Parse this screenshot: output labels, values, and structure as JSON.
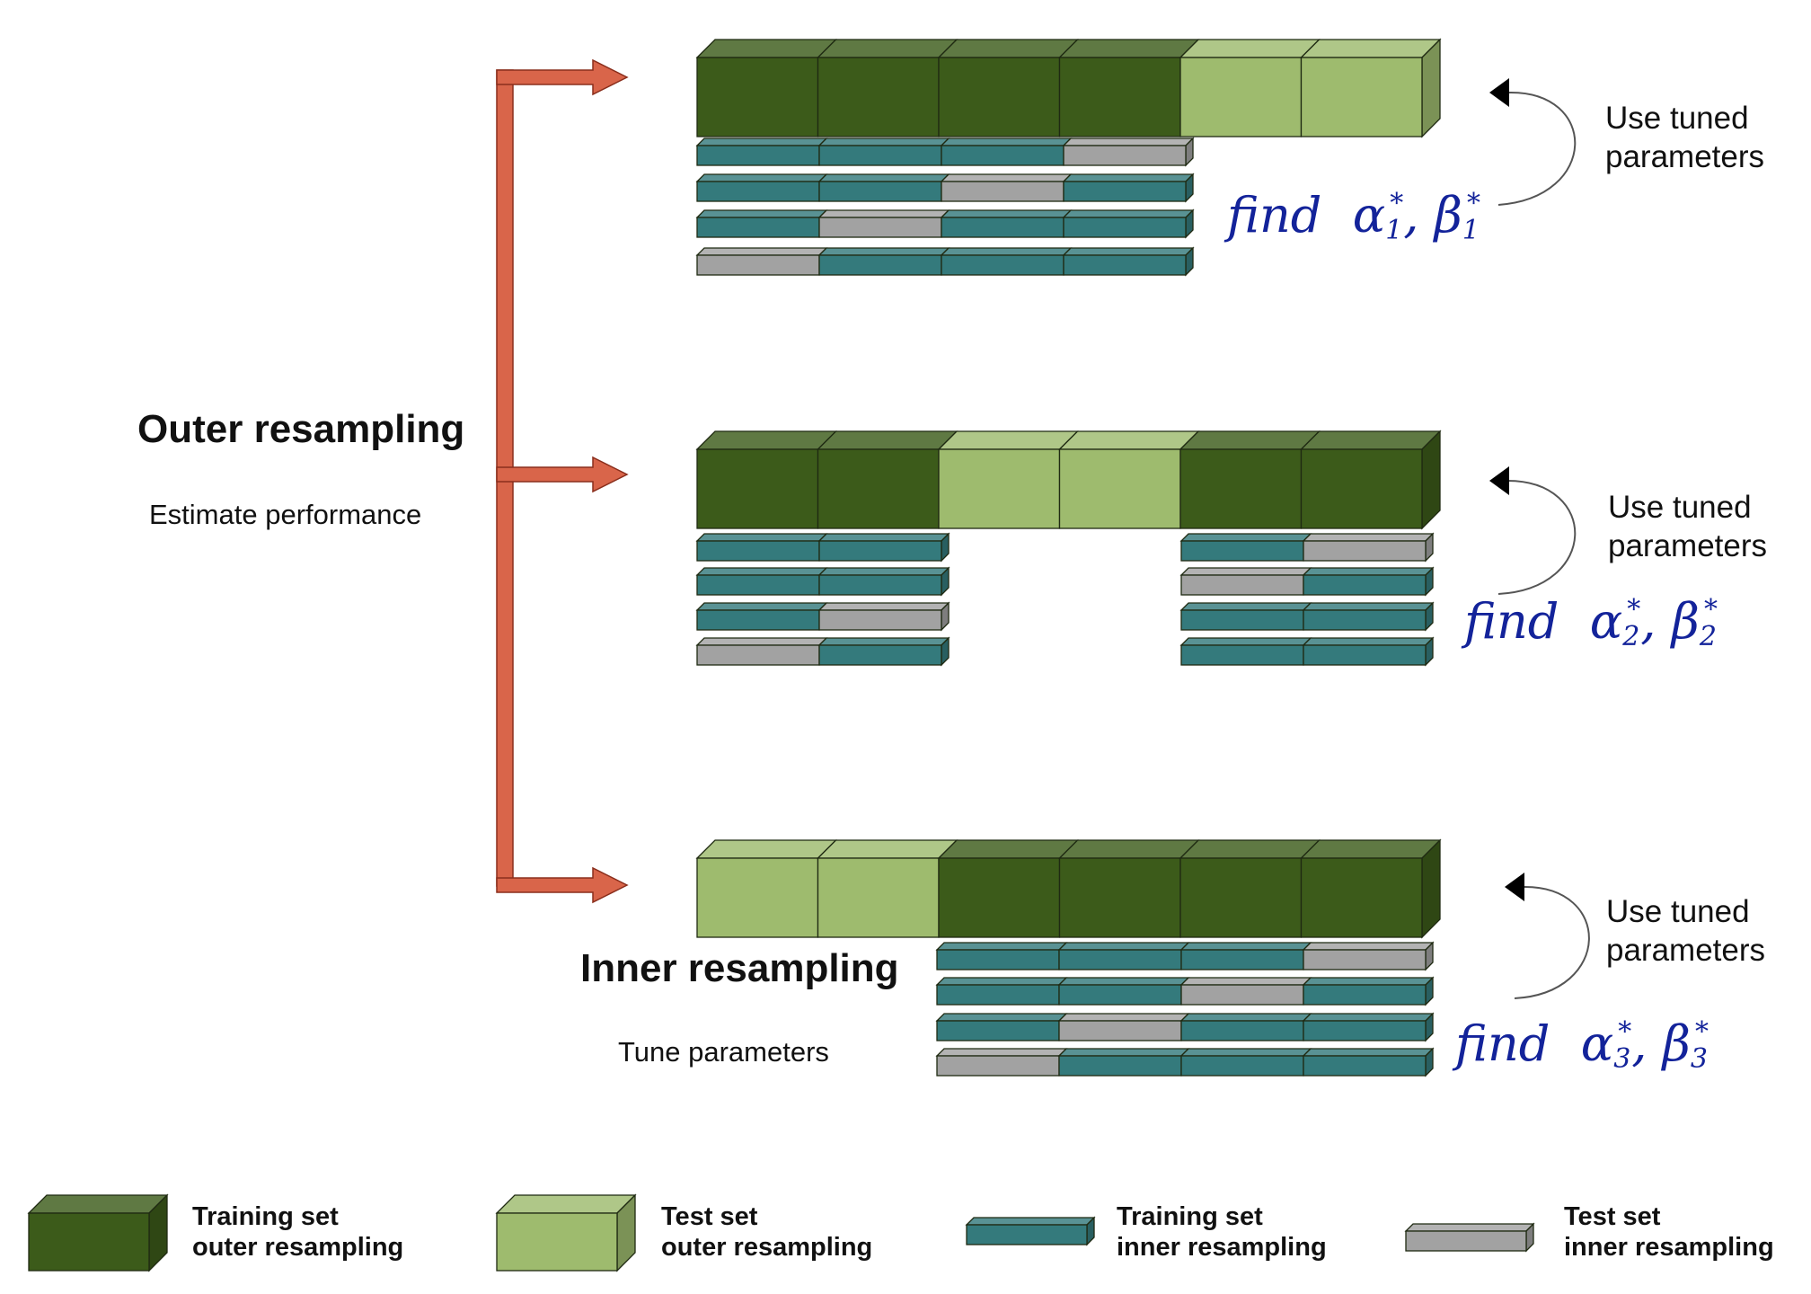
{
  "colors": {
    "train_outer": "#3c5b1a",
    "test_outer": "#9ebb6e",
    "train_inner": "#347a7c",
    "test_inner": "#a2a2a2",
    "arrow": "#d9654a",
    "handwriting": "#13239a"
  },
  "outer_resampling": {
    "title": "Outer resampling",
    "subtitle": "Estimate performance"
  },
  "inner_resampling": {
    "title": "Inner resampling",
    "subtitle": "Tune parameters"
  },
  "folds": [
    {
      "outer_pattern": [
        "train",
        "train",
        "train",
        "train",
        "test",
        "test"
      ],
      "inner_groups": [
        [
          [
            "train",
            "train",
            "train",
            "test"
          ],
          [
            "train",
            "train",
            "test",
            "train"
          ],
          [
            "train",
            "test",
            "train",
            "train"
          ],
          [
            "test",
            "train",
            "train",
            "train"
          ]
        ]
      ],
      "side_label": [
        "Use tuned",
        "parameters"
      ],
      "handwritten": {
        "prefix": "find",
        "alpha": "α",
        "beta": "β",
        "index": "1",
        "star": "*"
      }
    },
    {
      "outer_pattern": [
        "train",
        "train",
        "test",
        "test",
        "train",
        "train"
      ],
      "inner_groups": [
        [
          [
            "train",
            "train"
          ],
          [
            "train",
            "train"
          ],
          [
            "train",
            "test"
          ],
          [
            "test",
            "train"
          ]
        ],
        [
          [
            "train",
            "test"
          ],
          [
            "test",
            "train"
          ],
          [
            "train",
            "train"
          ],
          [
            "train",
            "train"
          ]
        ]
      ],
      "side_label": [
        "Use tuned",
        "parameters"
      ],
      "handwritten": {
        "prefix": "find",
        "alpha": "α",
        "beta": "β",
        "index": "2",
        "star": "*"
      }
    },
    {
      "outer_pattern": [
        "test",
        "test",
        "train",
        "train",
        "train",
        "train"
      ],
      "inner_groups": [
        [
          [
            "train",
            "train",
            "train",
            "test"
          ],
          [
            "train",
            "train",
            "test",
            "train"
          ],
          [
            "train",
            "test",
            "train",
            "train"
          ],
          [
            "test",
            "train",
            "train",
            "train"
          ]
        ]
      ],
      "side_label": [
        "Use tuned",
        "parameters"
      ],
      "handwritten": {
        "prefix": "find",
        "alpha": "α",
        "beta": "β",
        "index": "3",
        "star": "*"
      }
    }
  ],
  "legend": [
    {
      "kind": "train_outer",
      "line1": "Training set",
      "line2": "outer resampling"
    },
    {
      "kind": "test_outer",
      "line1": "Test set",
      "line2": "outer resampling"
    },
    {
      "kind": "train_inner",
      "line1": "Training set",
      "line2": "inner resampling"
    },
    {
      "kind": "test_inner",
      "line1": "Test set",
      "line2": "inner resampling"
    }
  ]
}
